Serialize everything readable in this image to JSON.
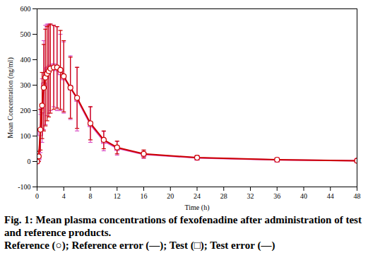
{
  "chart_data": {
    "type": "line",
    "title": "Fig. 1: Mean plasma concentrations of fexofenadine after administration of test and reference products.",
    "subtitle": "Reference (○); Reference error (—); Test (□); Test error (—)",
    "x_label": "Time (h)",
    "y_label": "Mean Concentration (ng/ml)",
    "x": [
      0,
      0.25,
      0.5,
      0.75,
      1,
      1.25,
      1.5,
      1.75,
      2,
      2.5,
      3,
      3.5,
      4,
      5,
      6,
      8,
      10,
      12,
      16,
      24,
      36,
      48
    ],
    "series": [
      {
        "name": "Test",
        "color": "#d94fc4",
        "marker": "square",
        "values": [
          0,
          15,
          110,
          200,
          300,
          340,
          360,
          365,
          370,
          375,
          365,
          350,
          330,
          290,
          245,
          145,
          80,
          52,
          28,
          14,
          6,
          3
        ],
        "error": [
          0,
          15,
          75,
          125,
          175,
          195,
          180,
          175,
          170,
          160,
          165,
          150,
          140,
          125,
          125,
          70,
          38,
          27,
          16,
          8,
          4,
          2
        ]
      },
      {
        "name": "Reference",
        "color": "#cc0000",
        "marker": "circle",
        "values": [
          0,
          20,
          125,
          220,
          290,
          330,
          345,
          355,
          365,
          370,
          370,
          360,
          335,
          290,
          250,
          150,
          85,
          55,
          30,
          15,
          7,
          3
        ],
        "error": [
          0,
          20,
          80,
          130,
          170,
          190,
          185,
          180,
          175,
          165,
          160,
          155,
          140,
          120,
          120,
          65,
          35,
          25,
          15,
          8,
          4,
          2
        ]
      }
    ],
    "xlim": [
      0,
      48
    ],
    "xticks": [
      0,
      4,
      8,
      12,
      16,
      20,
      24,
      28,
      32,
      36,
      40,
      44,
      48
    ],
    "ylim": [
      -100,
      600
    ],
    "yticks": [
      -100,
      0,
      100,
      200,
      300,
      400,
      500,
      600
    ],
    "grid": false
  }
}
